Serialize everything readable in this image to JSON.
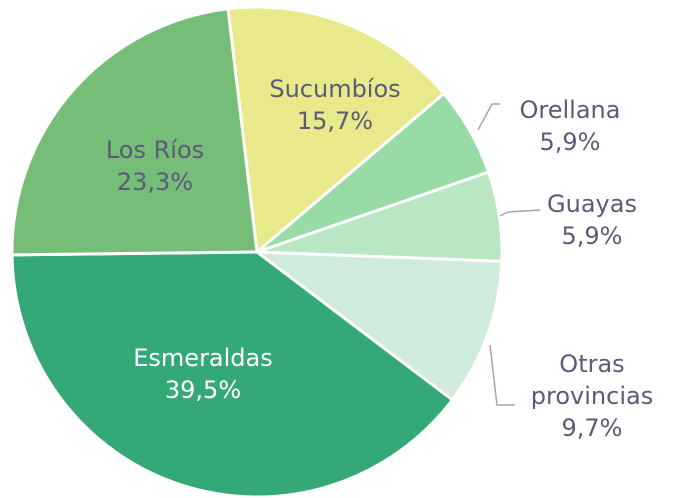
{
  "chart_data": {
    "type": "pie",
    "categories": [
      "Sucumbíos",
      "Orellana",
      "Guayas",
      "Otras provincias",
      "Esmeraldas",
      "Los Ríos"
    ],
    "values": [
      15.7,
      5.9,
      5.9,
      9.7,
      39.5,
      23.3
    ],
    "value_labels": [
      "15,7%",
      "5,9%",
      "5,9%",
      "9,7%",
      "39,5%",
      "23,3%"
    ],
    "colors": [
      "#e8e98a",
      "#98dba6",
      "#b9e6c3",
      "#d0eadc",
      "#35a877",
      "#76bd78"
    ]
  }
}
